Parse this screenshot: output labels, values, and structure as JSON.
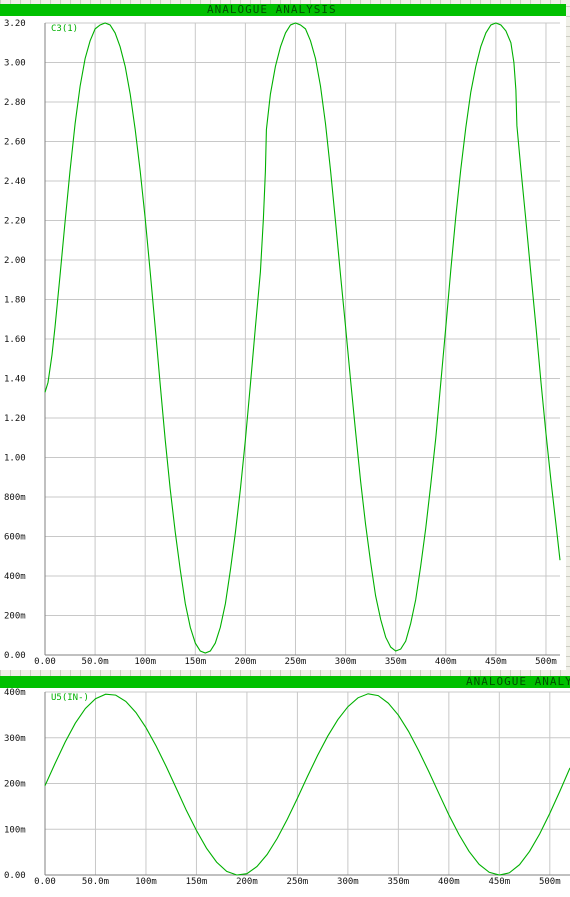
{
  "window": {
    "top_title": "ANALOGUE ANALYSIS",
    "bottom_title": "ANALOGUE ANALYSIS"
  },
  "colors": {
    "trace": "#00b000",
    "grid": "#c8c8c8",
    "title_bar": "#00c000",
    "title_text": "#005000"
  },
  "chart_data": [
    {
      "type": "line",
      "title": "",
      "series": [
        {
          "name": "C3(1)",
          "x": [
            0,
            3,
            7,
            10,
            15,
            20,
            25,
            30,
            35,
            40,
            45,
            50,
            55,
            60,
            65,
            70,
            75,
            80,
            85,
            90,
            95,
            100,
            105,
            110,
            115,
            120,
            125,
            130,
            135,
            140,
            145,
            150,
            155,
            160,
            165,
            170,
            175,
            180,
            185,
            190,
            195,
            200,
            205,
            210,
            215,
            218,
            220,
            221,
            225,
            230,
            235,
            240,
            245,
            250,
            255,
            260,
            265,
            270,
            275,
            280,
            285,
            290,
            295,
            300,
            305,
            310,
            315,
            320,
            325,
            330,
            335,
            340,
            345,
            350,
            355,
            360,
            365,
            370,
            375,
            380,
            385,
            390,
            395,
            400,
            405,
            410,
            415,
            420,
            425,
            430,
            435,
            440,
            445,
            450,
            455,
            460,
            465,
            468,
            470,
            471,
            475,
            480,
            485,
            490,
            495,
            500,
            505,
            510,
            514
          ],
          "y": [
            1.33,
            1.38,
            1.52,
            1.66,
            1.92,
            2.19,
            2.45,
            2.69,
            2.88,
            3.02,
            3.11,
            3.17,
            3.19,
            3.2,
            3.19,
            3.15,
            3.08,
            2.98,
            2.84,
            2.66,
            2.45,
            2.21,
            1.94,
            1.66,
            1.37,
            1.09,
            0.84,
            0.62,
            0.43,
            0.26,
            0.14,
            0.06,
            0.02,
            0.01,
            0.02,
            0.06,
            0.14,
            0.26,
            0.43,
            0.62,
            0.84,
            1.09,
            1.37,
            1.66,
            1.94,
            2.21,
            2.45,
            2.66,
            2.84,
            2.98,
            3.08,
            3.15,
            3.19,
            3.2,
            3.19,
            3.17,
            3.11,
            3.02,
            2.88,
            2.69,
            2.45,
            2.19,
            1.92,
            1.66,
            1.39,
            1.13,
            0.88,
            0.66,
            0.47,
            0.3,
            0.18,
            0.09,
            0.04,
            0.02,
            0.03,
            0.07,
            0.16,
            0.28,
            0.45,
            0.64,
            0.86,
            1.1,
            1.38,
            1.66,
            1.95,
            2.22,
            2.46,
            2.67,
            2.85,
            2.98,
            3.08,
            3.15,
            3.19,
            3.2,
            3.19,
            3.16,
            3.1,
            3.0,
            2.86,
            2.68,
            2.46,
            2.2,
            1.93,
            1.66,
            1.38,
            1.12,
            0.88,
            0.66,
            0.48
          ],
          "note": ""
        }
      ],
      "x_ticks": [
        "0.00",
        "50.0m",
        "100m",
        "150m",
        "200m",
        "250m",
        "300m",
        "350m",
        "400m",
        "450m",
        "500m"
      ],
      "y_ticks": [
        "0.00",
        "200m",
        "400m",
        "600m",
        "800m",
        "1.00",
        "1.20",
        "1.40",
        "1.60",
        "1.80",
        "2.00",
        "2.20",
        "2.40",
        "2.60",
        "2.80",
        "3.00",
        "3.20"
      ],
      "xlim": [
        0,
        514
      ],
      "ylim": [
        0,
        3.2
      ],
      "grid": true
    },
    {
      "type": "line",
      "title": "",
      "series": [
        {
          "name": "U5(IN-)",
          "x": [
            0,
            10,
            20,
            30,
            40,
            50,
            60,
            70,
            80,
            90,
            100,
            110,
            120,
            130,
            140,
            150,
            160,
            170,
            180,
            190,
            200,
            210,
            220,
            230,
            240,
            250,
            260,
            270,
            280,
            290,
            300,
            310,
            320,
            330,
            340,
            350,
            360,
            370,
            380,
            390,
            400,
            410,
            420,
            430,
            440,
            450,
            460,
            470,
            480,
            490,
            500,
            510,
            520
          ],
          "y": [
            0.2,
            0.25,
            0.298,
            0.34,
            0.373,
            0.395,
            0.405,
            0.403,
            0.389,
            0.364,
            0.33,
            0.289,
            0.243,
            0.194,
            0.145,
            0.1,
            0.06,
            0.029,
            0.008,
            0.0,
            0.003,
            0.019,
            0.046,
            0.082,
            0.125,
            0.172,
            0.221,
            0.268,
            0.311,
            0.348,
            0.377,
            0.397,
            0.406,
            0.402,
            0.385,
            0.358,
            0.322,
            0.279,
            0.232,
            0.183,
            0.135,
            0.091,
            0.053,
            0.024,
            0.006,
            0.0,
            0.005,
            0.023,
            0.053,
            0.092,
            0.138,
            0.188,
            0.24
          ]
        }
      ],
      "x_ticks": [
        "0.00",
        "50.0m",
        "100m",
        "150m",
        "200m",
        "250m",
        "300m",
        "350m",
        "400m",
        "450m",
        "500m"
      ],
      "y_ticks": [
        "0.00",
        "100m",
        "200m",
        "300m",
        "400m"
      ],
      "xlim": [
        0,
        520
      ],
      "ylim": [
        0,
        0.41
      ],
      "grid": true
    }
  ]
}
